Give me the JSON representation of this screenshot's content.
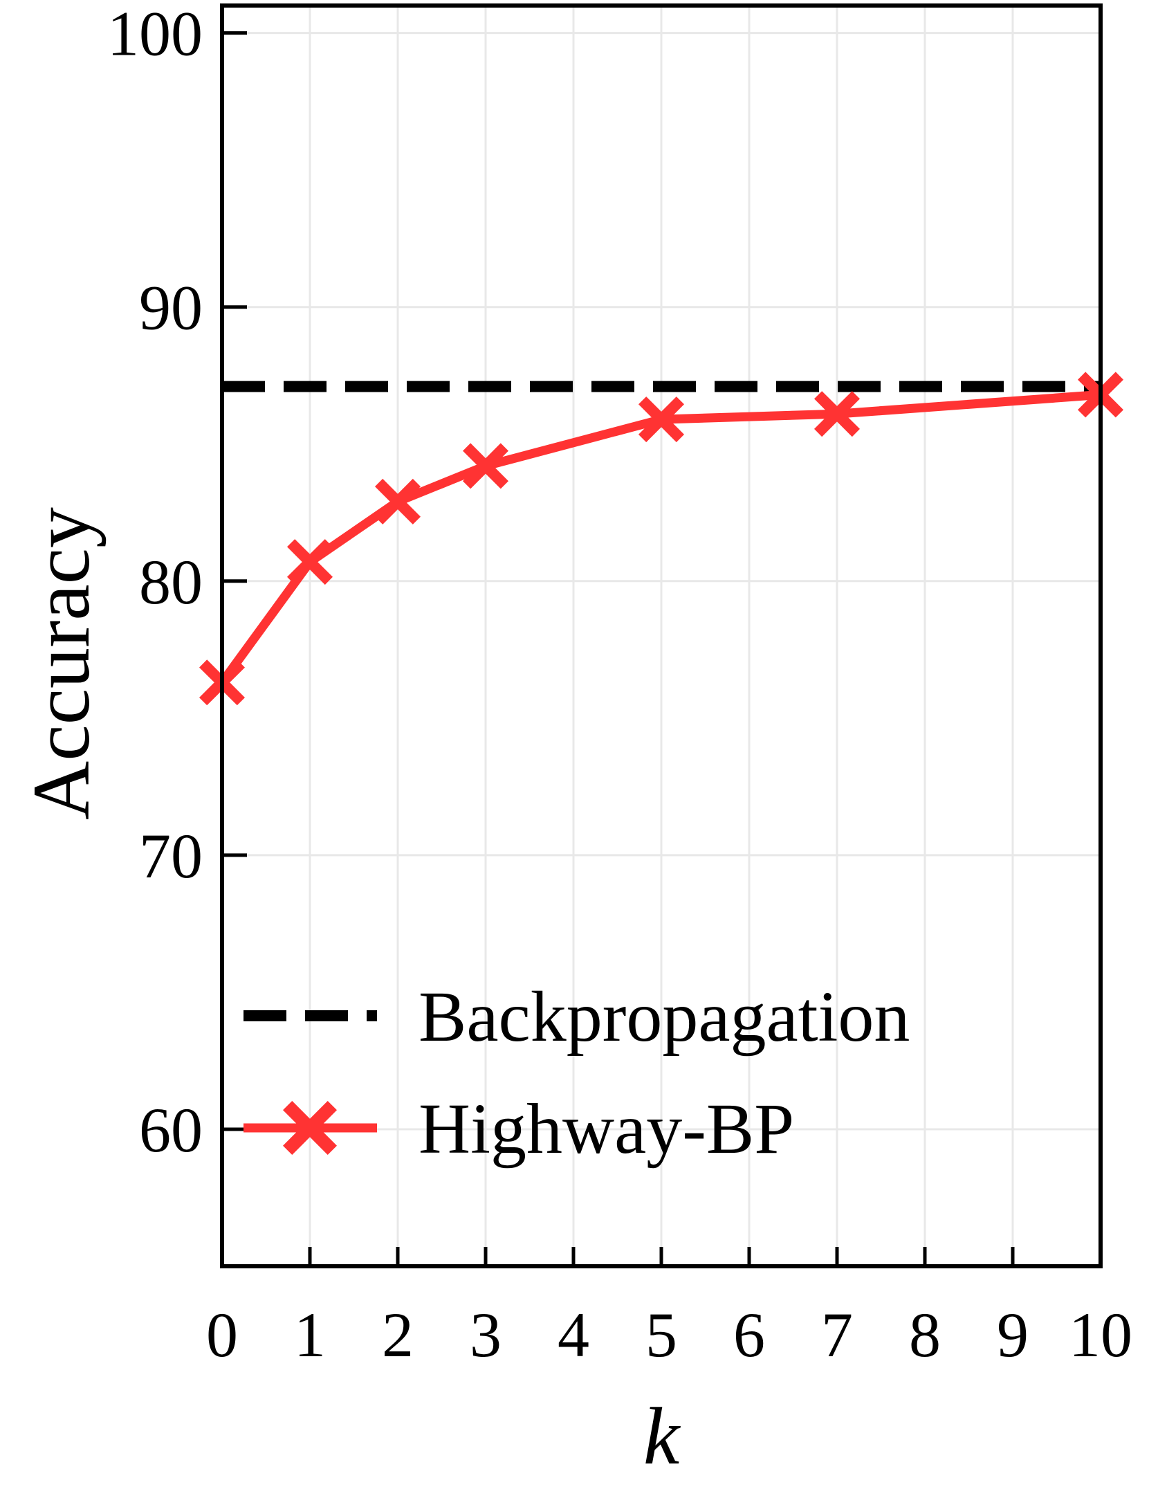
{
  "chart_data": {
    "type": "line",
    "xlabel": "k",
    "ylabel": "Accuracy",
    "xlim": [
      0,
      10
    ],
    "ylim": [
      55,
      101
    ],
    "xticks": [
      0,
      1,
      2,
      3,
      4,
      5,
      6,
      7,
      8,
      9,
      10
    ],
    "yticks": [
      60,
      70,
      80,
      90,
      100
    ],
    "grid": true,
    "legend_placement": "lower-left",
    "series": [
      {
        "name": "Backpropagation",
        "style": "dashed",
        "color": "#000000",
        "x": [
          0,
          10
        ],
        "values": [
          87.1,
          87.1
        ]
      },
      {
        "name": "Highway-BP",
        "style": "solid",
        "marker": "x-filled",
        "color": "#ff3333",
        "x": [
          0,
          1,
          2,
          3,
          5,
          7,
          10
        ],
        "values": [
          76.3,
          80.7,
          82.9,
          84.2,
          85.9,
          86.1,
          86.8
        ]
      }
    ]
  }
}
